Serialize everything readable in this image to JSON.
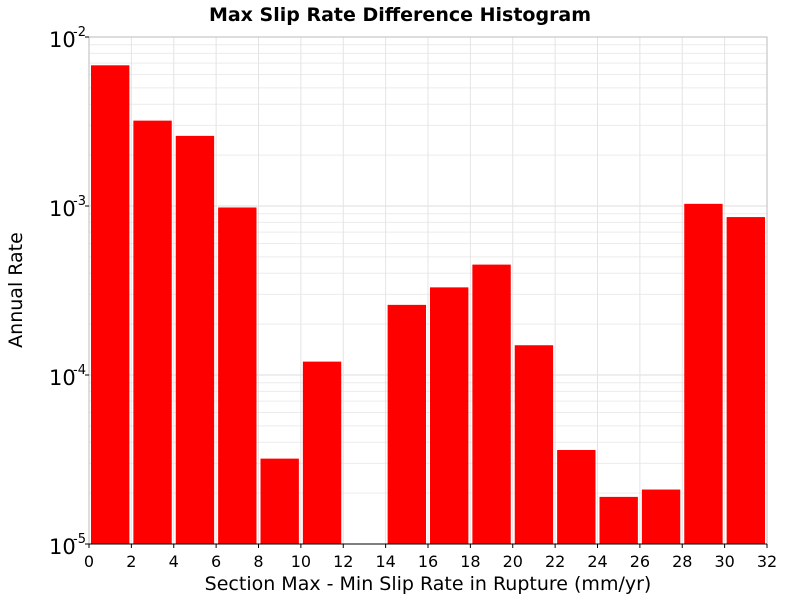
{
  "chart_data": {
    "type": "bar",
    "title": "Max Slip Rate Difference Histogram",
    "xlabel": "Section Max - Min Slip Rate in Rupture (mm/yr)",
    "ylabel": "Annual Rate",
    "y_scale": "log",
    "xlim": [
      0,
      32
    ],
    "ylim": [
      1e-05,
      0.01
    ],
    "grid": true,
    "bar_color": "#ff0000",
    "bin_width": 2,
    "x_ticks": [
      "0",
      "2",
      "4",
      "6",
      "8",
      "10",
      "12",
      "14",
      "16",
      "18",
      "20",
      "22",
      "24",
      "26",
      "28",
      "30",
      "32"
    ],
    "x_tick_values": [
      0,
      2,
      4,
      6,
      8,
      10,
      12,
      14,
      16,
      18,
      20,
      22,
      24,
      26,
      28,
      30,
      32
    ],
    "y_ticks": [
      {
        "value": 1e-05,
        "base": "10",
        "exp": "-5"
      },
      {
        "value": 0.0001,
        "base": "10",
        "exp": "-4"
      },
      {
        "value": 0.001,
        "base": "10",
        "exp": "-3"
      },
      {
        "value": 0.01,
        "base": "10",
        "exp": "-2"
      }
    ],
    "bins": [
      {
        "x": 1,
        "value": 0.0068
      },
      {
        "x": 3,
        "value": 0.0032
      },
      {
        "x": 5,
        "value": 0.0026
      },
      {
        "x": 7,
        "value": 0.00098
      },
      {
        "x": 9,
        "value": 3.2e-05
      },
      {
        "x": 11,
        "value": 0.00012
      },
      {
        "x": 13,
        "value": 0
      },
      {
        "x": 15,
        "value": 0.00026
      },
      {
        "x": 17,
        "value": 0.00033
      },
      {
        "x": 19,
        "value": 0.00045
      },
      {
        "x": 21,
        "value": 0.00015
      },
      {
        "x": 23,
        "value": 3.6e-05
      },
      {
        "x": 25,
        "value": 1.9e-05
      },
      {
        "x": 27,
        "value": 2.1e-05
      },
      {
        "x": 29,
        "value": 0.00103
      },
      {
        "x": 31,
        "value": 0.00086
      }
    ]
  }
}
